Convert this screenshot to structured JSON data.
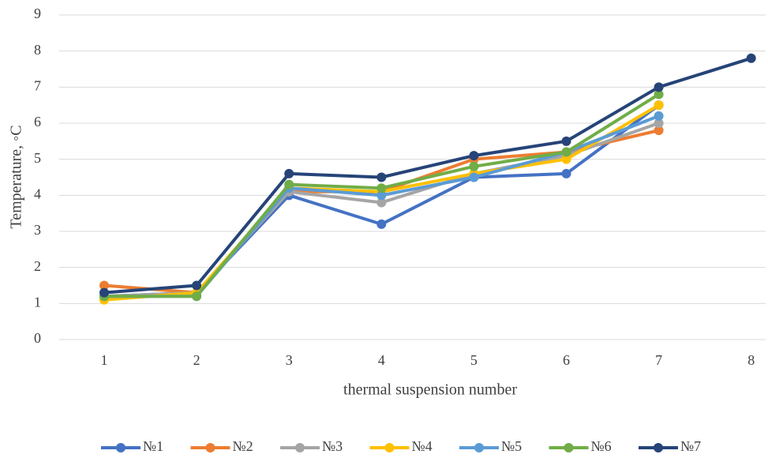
{
  "chart_data": {
    "type": "line",
    "x_label": "thermal suspension number",
    "y_label": "Temperature, ◦C",
    "categories": [
      "1",
      "2",
      "3",
      "4",
      "5",
      "6",
      "7",
      "8"
    ],
    "ylim": [
      0,
      9
    ],
    "yticks": [
      0,
      1,
      2,
      3,
      4,
      5,
      6,
      7,
      8,
      9
    ],
    "grid": true,
    "legend": "bottom",
    "series": [
      {
        "name": "№1",
        "color": "#4472c4",
        "values": [
          1.2,
          1.3,
          4.0,
          3.2,
          4.5,
          4.6,
          6.5,
          null
        ]
      },
      {
        "name": "№2",
        "color": "#ed7d31",
        "values": [
          1.5,
          1.3,
          4.1,
          4.1,
          5.0,
          5.2,
          5.8,
          null
        ]
      },
      {
        "name": "№3",
        "color": "#a5a5a5",
        "values": [
          1.2,
          1.3,
          4.1,
          3.8,
          4.6,
          5.1,
          6.0,
          null
        ]
      },
      {
        "name": "№4",
        "color": "#ffc000",
        "values": [
          1.1,
          1.3,
          4.2,
          4.1,
          4.6,
          5.0,
          6.5,
          null
        ]
      },
      {
        "name": "№5",
        "color": "#5b9bd5",
        "values": [
          1.2,
          1.2,
          4.2,
          4.0,
          4.5,
          5.2,
          6.2,
          null
        ]
      },
      {
        "name": "№6",
        "color": "#70ad47",
        "values": [
          1.2,
          1.2,
          4.3,
          4.2,
          4.8,
          5.2,
          6.8,
          null
        ]
      },
      {
        "name": "№7",
        "color": "#264478",
        "values": [
          1.3,
          1.5,
          4.6,
          4.5,
          5.1,
          5.5,
          7.0,
          7.8
        ]
      }
    ]
  }
}
